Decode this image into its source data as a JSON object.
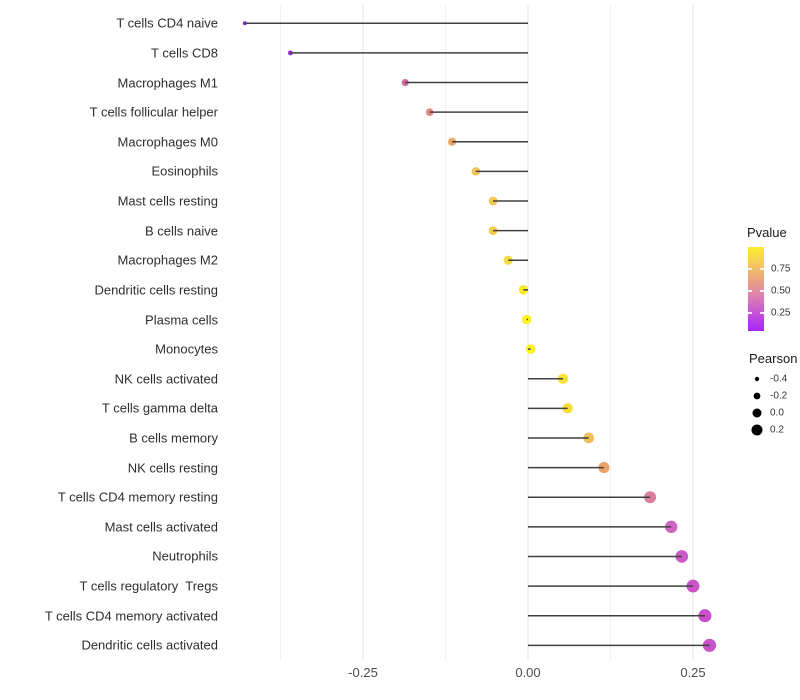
{
  "chart_data": {
    "type": "lollipop",
    "orientation": "horizontal",
    "title": "",
    "xlabel": "",
    "ylabel": "",
    "baseline": 0,
    "x_axis": {
      "tick_labels": [
        "-0.25",
        "0.00",
        "0.25"
      ],
      "tick_values": [
        -0.25,
        0,
        0.25
      ],
      "minor_gridlines": [
        -0.375,
        -0.125,
        0.125
      ],
      "range": [
        -0.465,
        0.315
      ]
    },
    "points": [
      {
        "label": "T cells CD4 naive",
        "pearson": -0.429,
        "pvalue": 0.02,
        "color": "#7c2bd1"
      },
      {
        "label": "T cells CD8",
        "pearson": -0.36,
        "pvalue": 0.09,
        "color": "#9a34d8"
      },
      {
        "label": "Macrophages M1",
        "pearson": -0.186,
        "pvalue": 0.44,
        "color": "#d0699e"
      },
      {
        "label": "T cells follicular helper",
        "pearson": -0.149,
        "pvalue": 0.55,
        "color": "#df8a83"
      },
      {
        "label": "Macrophages M0",
        "pearson": -0.115,
        "pvalue": 0.67,
        "color": "#eda569"
      },
      {
        "label": "Eosinophils",
        "pearson": -0.079,
        "pvalue": 0.77,
        "color": "#f0c258"
      },
      {
        "label": "Mast cells resting",
        "pearson": -0.053,
        "pvalue": 0.8,
        "color": "#f2cb50"
      },
      {
        "label": "B cells naive",
        "pearson": -0.053,
        "pvalue": 0.8,
        "color": "#f3cd4c"
      },
      {
        "label": "Macrophages M2",
        "pearson": -0.03,
        "pvalue": 0.87,
        "color": "#f6da41"
      },
      {
        "label": "Dendritic cells resting",
        "pearson": -0.007,
        "pvalue": 0.95,
        "color": "#fbe92c"
      },
      {
        "label": "Plasma cells",
        "pearson": -0.002,
        "pvalue": 0.99,
        "color": "#fdf321"
      },
      {
        "label": "Monocytes",
        "pearson": 0.004,
        "pvalue": 0.99,
        "color": "#fdf41e"
      },
      {
        "label": "NK cells activated",
        "pearson": 0.053,
        "pvalue": 0.92,
        "color": "#f8e134"
      },
      {
        "label": "T cells gamma delta",
        "pearson": 0.06,
        "pvalue": 0.91,
        "color": "#f7de36"
      },
      {
        "label": "B cells memory",
        "pearson": 0.092,
        "pvalue": 0.78,
        "color": "#efbf5c"
      },
      {
        "label": "NK cells resting",
        "pearson": 0.115,
        "pvalue": 0.67,
        "color": "#eba267"
      },
      {
        "label": "T cells CD4 memory resting",
        "pearson": 0.185,
        "pvalue": 0.5,
        "color": "#d87f9c"
      },
      {
        "label": "Mast cells activated",
        "pearson": 0.217,
        "pvalue": 0.38,
        "color": "#cd66c0"
      },
      {
        "label": "Neutrophils",
        "pearson": 0.233,
        "pvalue": 0.35,
        "color": "#cb5ac6"
      },
      {
        "label": "T cells regulatory  Tregs",
        "pearson": 0.25,
        "pvalue": 0.34,
        "color": "#ca54c6"
      },
      {
        "label": "T cells CD4 memory activated",
        "pearson": 0.268,
        "pvalue": 0.33,
        "color": "#c84fc9"
      },
      {
        "label": "Dendritic cells activated",
        "pearson": 0.275,
        "pvalue": 0.33,
        "color": "#c852c7"
      }
    ],
    "legend_pvalue": {
      "title": "Pvalue",
      "tick_labels": [
        "0.75",
        "0.50",
        "0.25"
      ],
      "tick_values": [
        0.75,
        0.5,
        0.25
      ],
      "gradient_stops": [
        {
          "color": "#fcee2e",
          "pos": 0
        },
        {
          "color": "#f5c95c",
          "pos": 0.2
        },
        {
          "color": "#e99d86",
          "pos": 0.42
        },
        {
          "color": "#de82ab",
          "pos": 0.57
        },
        {
          "color": "#cf63cc",
          "pos": 0.72
        },
        {
          "color": "#bb41e6",
          "pos": 0.86
        },
        {
          "color": "#a727f5",
          "pos": 1
        }
      ]
    },
    "legend_pearson": {
      "title": "Pearson",
      "labels": [
        "-0.4",
        "-0.2",
        "0.0",
        "0.2"
      ],
      "values": [
        -0.4,
        -0.2,
        0.0,
        0.2
      ],
      "dot_color": "#000000"
    }
  },
  "colors": {
    "background": "#ffffff",
    "segment": "#404040",
    "grid_major": "#e3e3e3",
    "grid_minor": "#f0f0f0",
    "axis_text": "#4d4d4d",
    "label_text": "#2e2e2e"
  }
}
